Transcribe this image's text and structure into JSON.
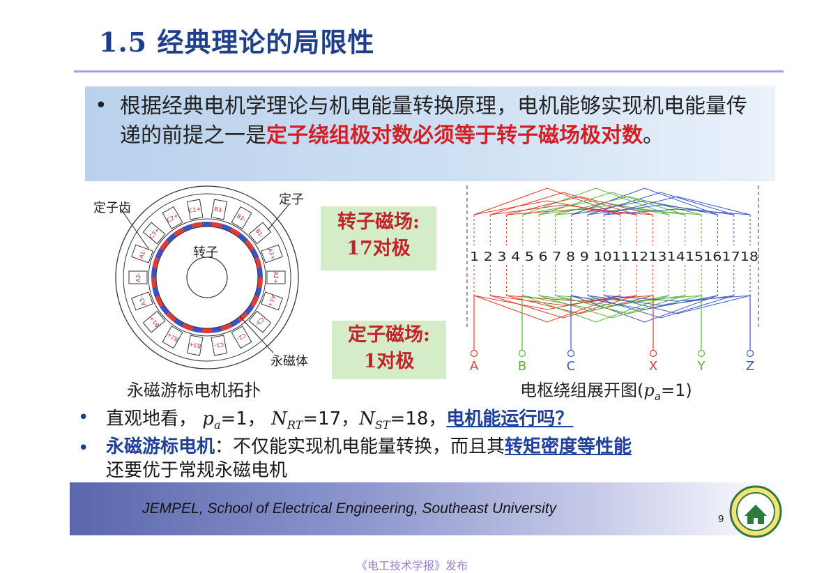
{
  "title": "1.5 经典理论的局限性",
  "intro": {
    "bullet": "•",
    "text_before": "根据经典电机学理论与机电能量转换原理，电机能够实现机电能量传递的前提之一是",
    "text_red": "定子绕组极对数必须等于转子磁场极对数",
    "text_after": "。"
  },
  "left_figure": {
    "label_stator_tooth": "定子齿",
    "label_stator": "定子",
    "label_rotor": "转子",
    "label_magnet": "永磁体",
    "caption": "永磁游标电机拓扑",
    "slot_labels": [
      "B3-",
      "B2-",
      "B1-",
      "A3+",
      "A2+",
      "A1+",
      "C3-",
      "C2-",
      "C1-",
      "B3+",
      "B2+",
      "B1+",
      "A3-",
      "A2-",
      "A1-",
      "C3+",
      "C2+",
      "C1+"
    ]
  },
  "rotor_field": {
    "line1": "转子磁场:",
    "line2": "17对极"
  },
  "stator_field": {
    "line1": "定子磁场:",
    "line2": "1对极"
  },
  "right_figure": {
    "slot_numbers": "1 2 3 4 5 6 7 8 9 101112131415161718",
    "terminals": [
      "A",
      "B",
      "C",
      "X",
      "Y",
      "Z"
    ],
    "caption_prefix": "电枢绕组展开图(",
    "caption_p": "p",
    "caption_sub": "a",
    "caption_suffix": "=1)"
  },
  "bullet2": {
    "bullet": "•",
    "lead": "直观地看，",
    "p_var": "p",
    "p_sub": "a",
    "p_val": "=1，",
    "nrt_var": "N",
    "nrt_sub": "RT",
    "nrt_val": "=17，",
    "nst_var": "N",
    "nst_sub": "ST",
    "nst_val": "=18，",
    "question": "电机能运行吗？"
  },
  "bullet3": {
    "bullet": "•",
    "lead": "永磁游标电机",
    "middle": "：不仅能实现机电能量转换，而且其",
    "link": "转矩密度等性能",
    "tail": "还要优于常规永磁电机"
  },
  "footer": {
    "text": "JEMPEL, School of Electrical Engineering, Southeast University",
    "page": "9"
  },
  "publish_note": "《电工技术学报》发布",
  "colors": {
    "title": "#1f3f8c",
    "red": "#d21f26",
    "phase_a": "#e0392a",
    "phase_b": "#57b33a",
    "phase_c": "#3b55c4"
  }
}
